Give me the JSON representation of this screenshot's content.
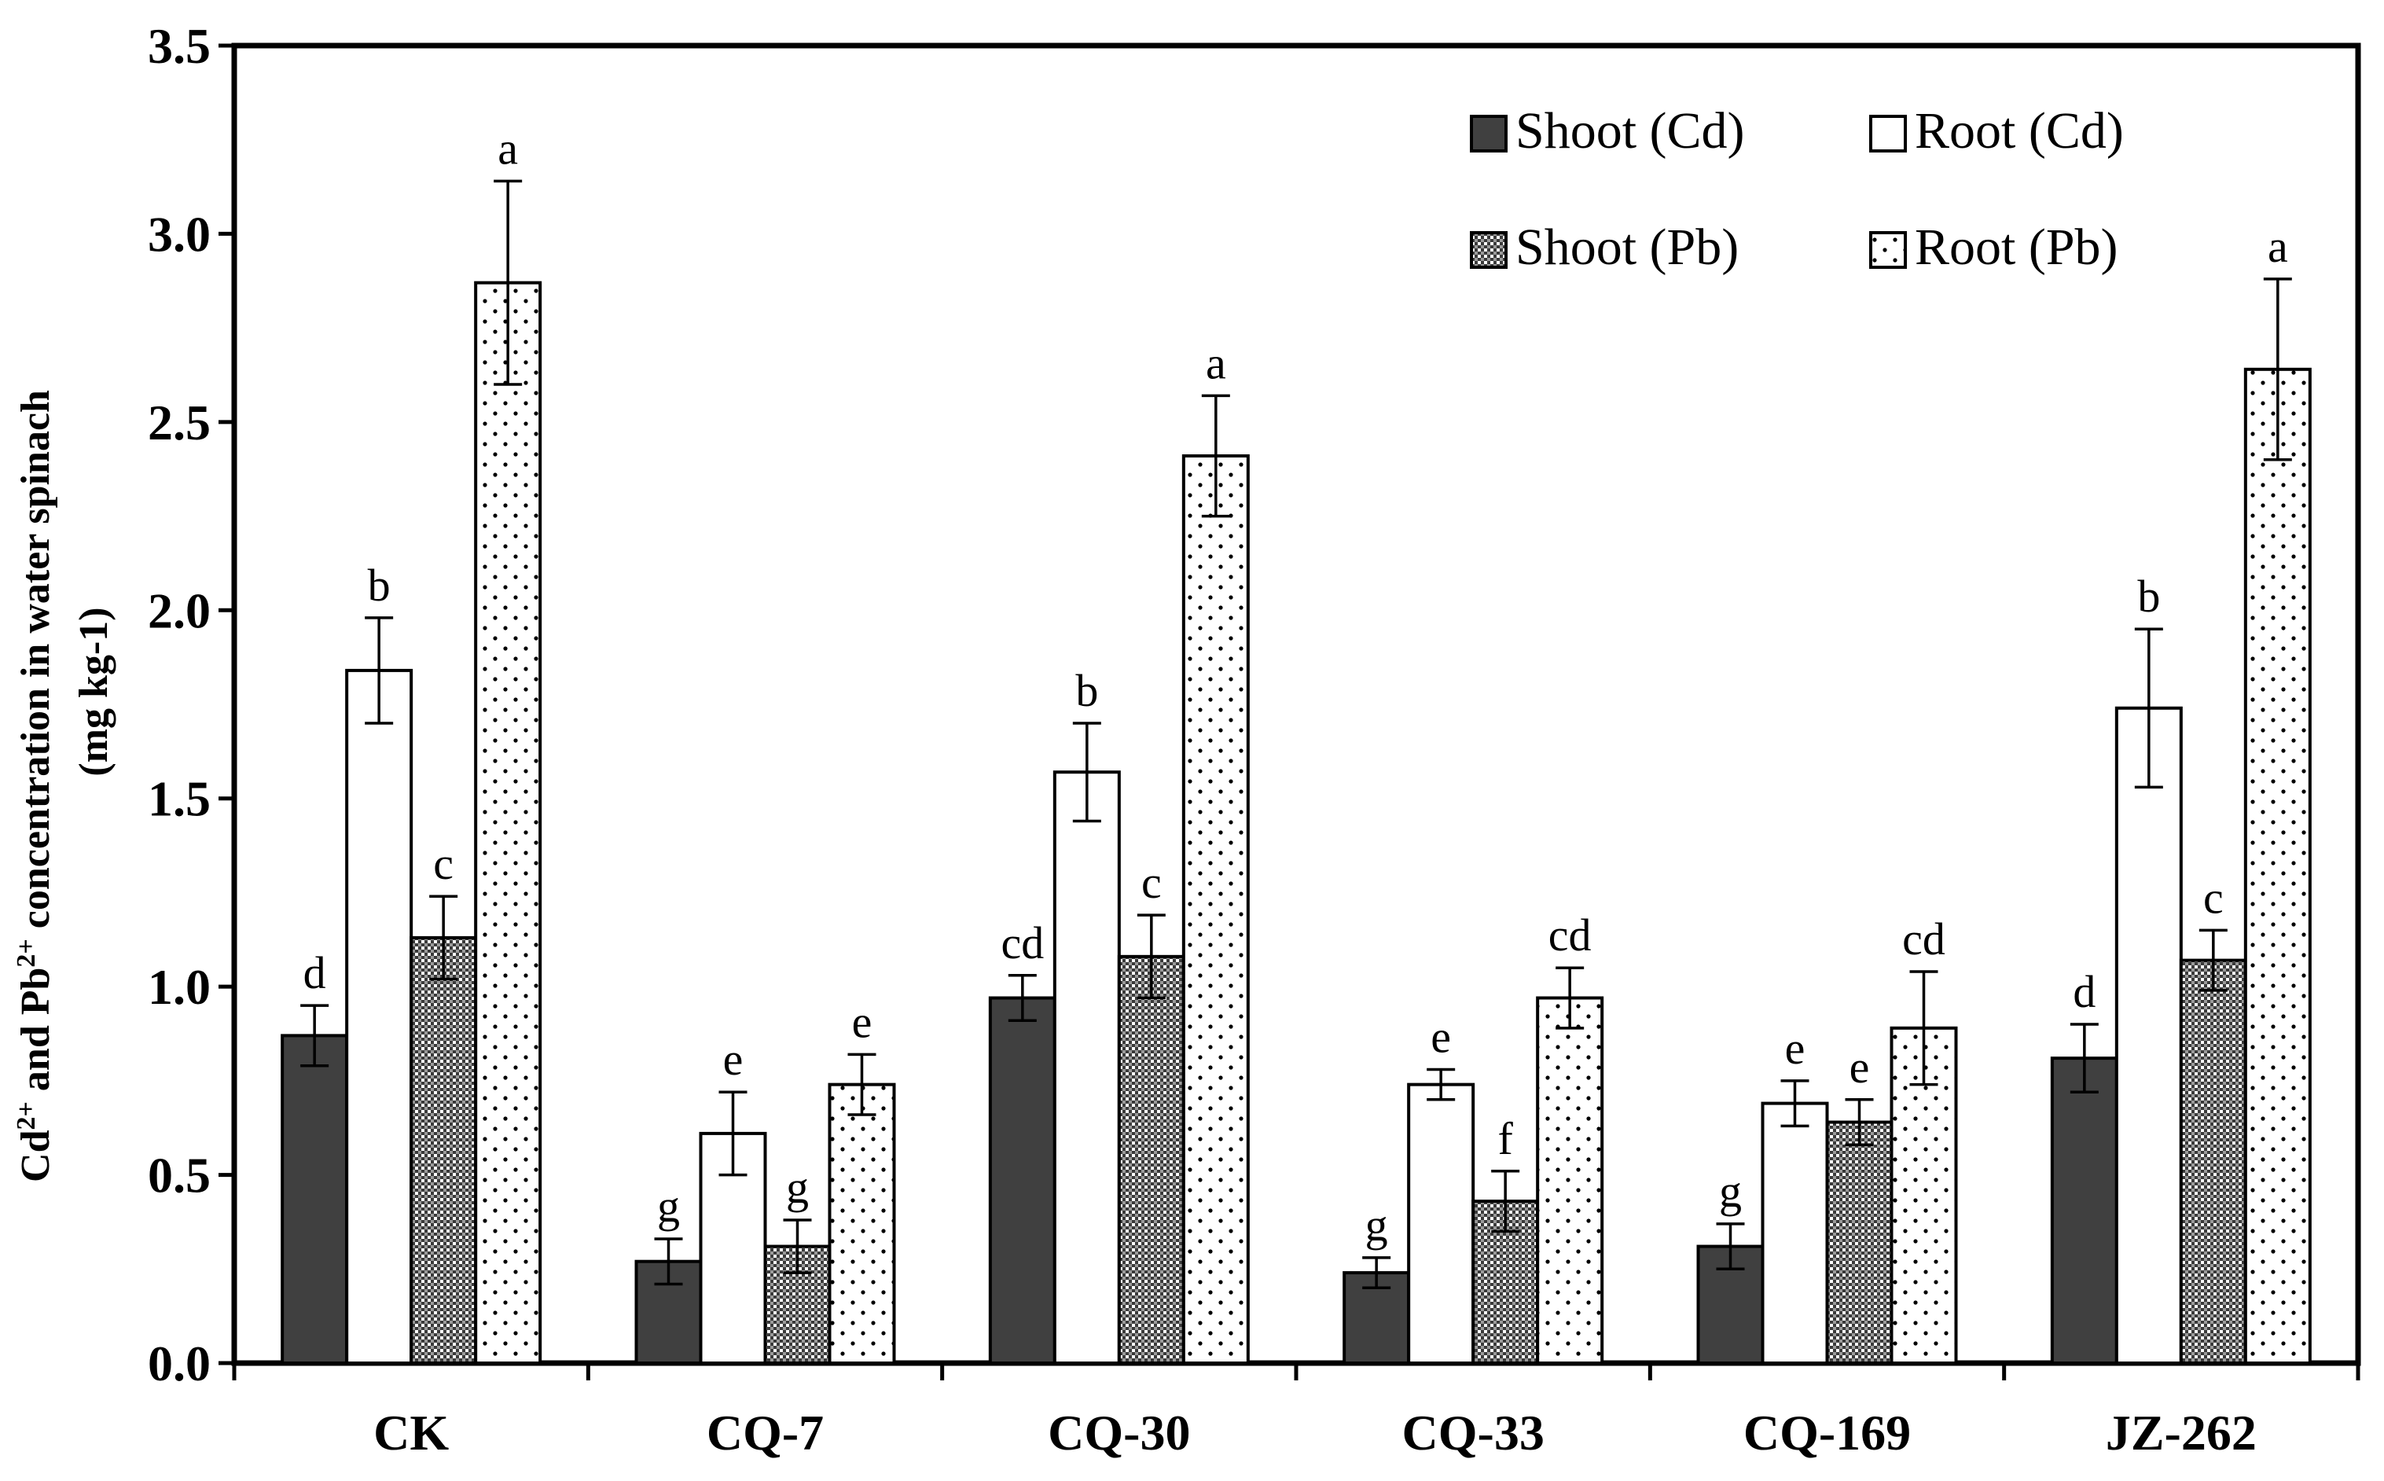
{
  "chart_data": {
    "type": "bar",
    "title": "",
    "xlabel": "",
    "ylabel": {
      "part1": "Cd",
      "sup1": "2+",
      "part2": " and Pb",
      "sup2": "2+",
      "part3": " concentration in water spinach",
      "unit": "(mg kg-1)"
    },
    "ylim": [
      0,
      3.5
    ],
    "yticks": [
      "0.0",
      "0.5",
      "1.0",
      "1.5",
      "2.0",
      "2.5",
      "3.0",
      "3.5"
    ],
    "categories": [
      "CK",
      "CQ-7",
      "CQ-30",
      "CQ-33",
      "CQ-169",
      "JZ-262"
    ],
    "series": [
      {
        "name": "Shoot (Cd)",
        "pattern": "solid",
        "values": [
          0.87,
          0.27,
          0.97,
          0.24,
          0.31,
          0.81
        ],
        "errors": [
          0.08,
          0.06,
          0.06,
          0.04,
          0.06,
          0.09
        ],
        "letters": [
          "d",
          "g",
          "cd",
          "g",
          "g",
          "d"
        ]
      },
      {
        "name": "Root (Cd)",
        "pattern": "white",
        "values": [
          1.84,
          0.61,
          1.57,
          0.74,
          0.69,
          1.74
        ],
        "errors": [
          0.14,
          0.11,
          0.13,
          0.04,
          0.06,
          0.21
        ],
        "letters": [
          "b",
          "e",
          "b",
          "e",
          "e",
          "b"
        ]
      },
      {
        "name": "Shoot (Pb)",
        "pattern": "checker",
        "values": [
          1.13,
          0.31,
          1.08,
          0.43,
          0.64,
          1.07
        ],
        "errors": [
          0.11,
          0.07,
          0.11,
          0.08,
          0.06,
          0.08
        ],
        "letters": [
          "c",
          "g",
          "c",
          "f",
          "e",
          "c"
        ]
      },
      {
        "name": "Root (Pb)",
        "pattern": "dots",
        "values": [
          2.87,
          0.74,
          2.41,
          0.97,
          0.89,
          2.64
        ],
        "errors": [
          0.27,
          0.08,
          0.16,
          0.08,
          0.15,
          0.24
        ],
        "letters": [
          "a",
          "e",
          "a",
          "cd",
          "cd",
          "a"
        ]
      }
    ],
    "legend": {
      "position": "top-right",
      "labels": [
        "Shoot (Cd)",
        "Root (Cd)",
        "Shoot (Pb)",
        "Root (Pb)"
      ]
    },
    "grid": false
  },
  "colors": {
    "shoot_cd": "#404040",
    "outline": "#000000",
    "background": "#ffffff"
  }
}
